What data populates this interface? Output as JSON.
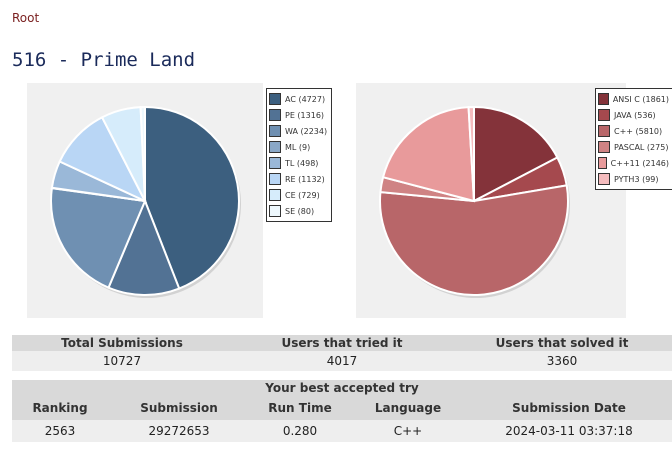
{
  "breadcrumb": {
    "root": "Root"
  },
  "page": {
    "title": "516 - Prime Land"
  },
  "charts": {
    "status": [
      {
        "label": "AC (4727)",
        "value": 4727,
        "color": "#3c5f7f"
      },
      {
        "label": "PE (1316)",
        "value": 1316,
        "color": "#527294"
      },
      {
        "label": "WA (2234)",
        "value": 2234,
        "color": "#6f90b2"
      },
      {
        "label": "ML (9)",
        "value": 9,
        "color": "#8aa8c8"
      },
      {
        "label": "TL (498)",
        "value": 498,
        "color": "#9ab8d8"
      },
      {
        "label": "RE (1132)",
        "value": 1132,
        "color": "#b9d6f5"
      },
      {
        "label": "CE (729)",
        "value": 729,
        "color": "#d6ecfb"
      },
      {
        "label": "SE (80)",
        "value": 80,
        "color": "#eef8fd"
      }
    ],
    "language": [
      {
        "label": "ANSI C (1861)",
        "value": 1861,
        "color": "#84333a"
      },
      {
        "label": "JAVA (536)",
        "value": 536,
        "color": "#a5494e"
      },
      {
        "label": "C++ (5810)",
        "value": 5810,
        "color": "#b86669"
      },
      {
        "label": "PASCAL (275)",
        "value": 275,
        "color": "#cf8384"
      },
      {
        "label": "C++11 (2146)",
        "value": 2146,
        "color": "#e89a9b"
      },
      {
        "label": "PYTH3 (99)",
        "value": 99,
        "color": "#f5bcbe"
      }
    ]
  },
  "stats": {
    "headers": [
      "Total Submissions",
      "Users that tried it",
      "Users that solved it"
    ],
    "values": [
      "10727",
      "4017",
      "3360"
    ]
  },
  "best_try": {
    "caption": "Your best accepted try",
    "headers": [
      "Ranking",
      "Submission",
      "Run Time",
      "Language",
      "Submission Date"
    ],
    "values": [
      "2563",
      "29272653",
      "0.280",
      "C++",
      "2024-03-11 03:37:18"
    ]
  }
}
